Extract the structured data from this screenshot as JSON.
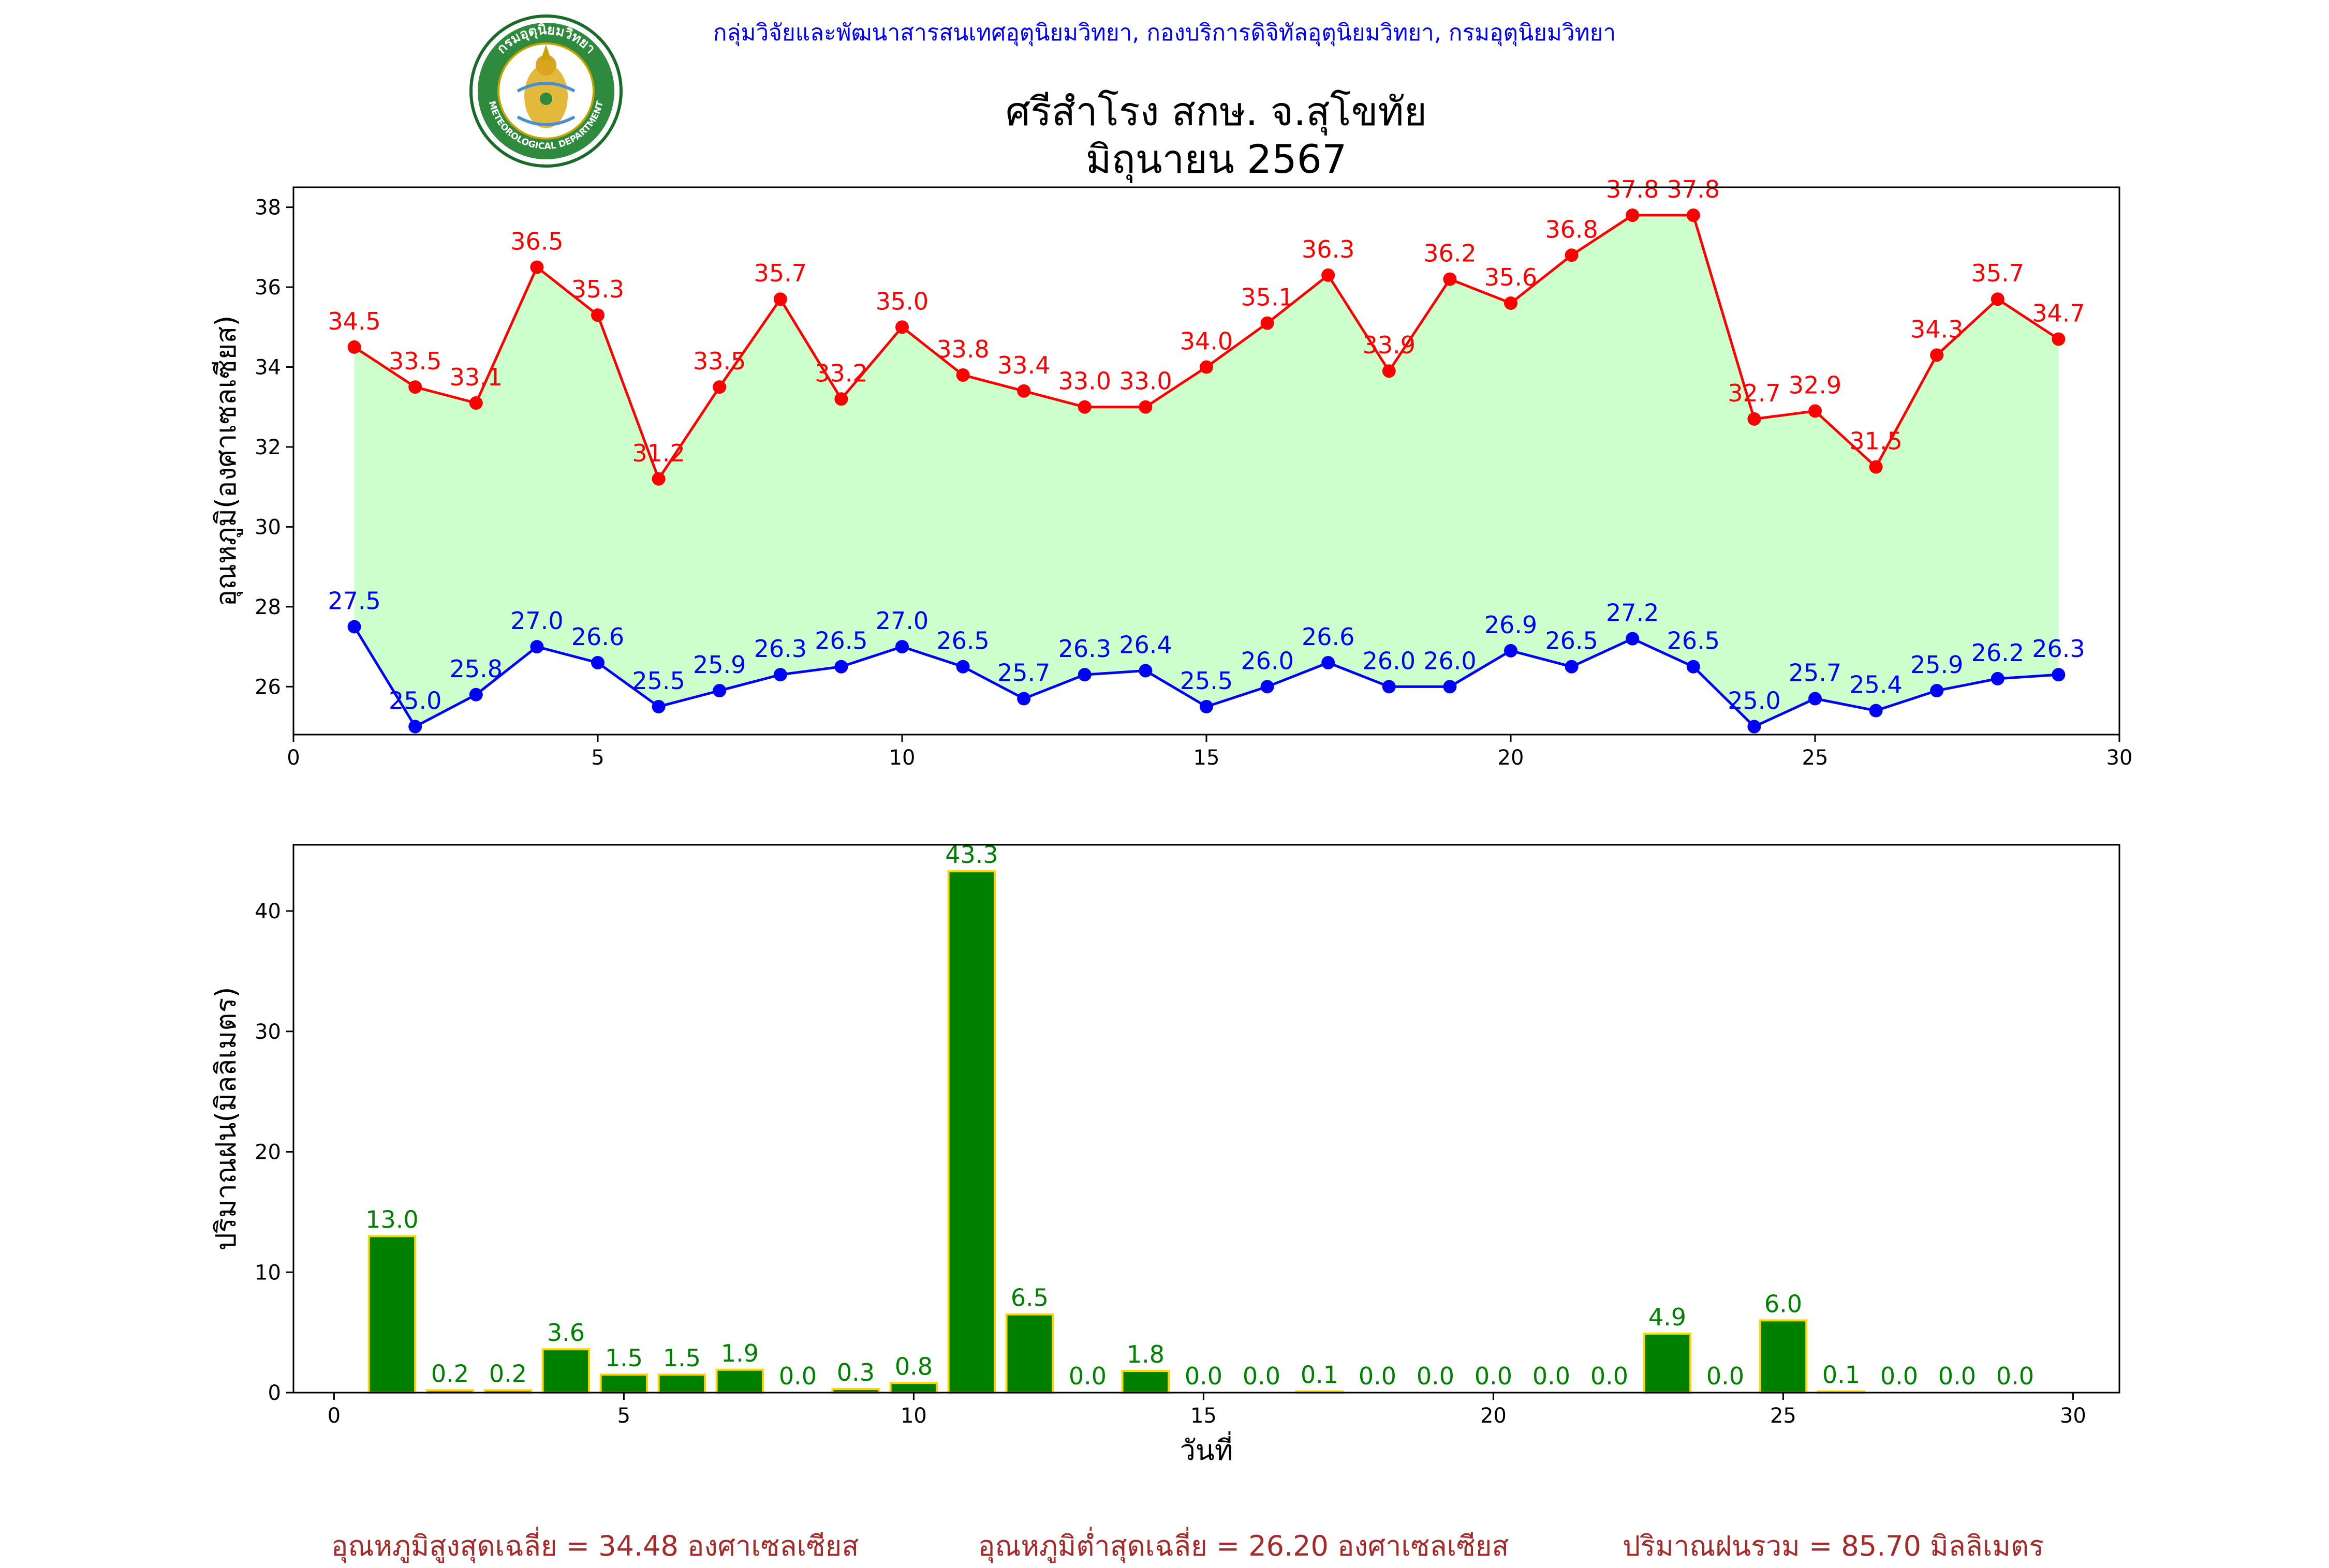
{
  "header": {
    "agency": "กลุ่มวิจัยและพัฒนาสารสนเทศอุตุนิยมวิทยา, กองบริการดิจิทัลอุตุนิยมวิทยา, กรมอุตุนิยมวิทยา",
    "title_line1": "ศรีสำโรง สกษ. จ.สุโขทัย",
    "title_line2": "มิถุนายน 2567",
    "logo": {
      "icon": "meteorological-department-seal-icon",
      "text_top": "กรมอุตุนิยมวิทยา",
      "text_bottom": "METEOROLOGICAL DEPARTMENT"
    }
  },
  "colors": {
    "max_temp": "#ff0000",
    "min_temp": "#0000ff",
    "range_fill": "#ccffcc",
    "rain_bar": "#008000",
    "rain_edge": "#ffd700",
    "rain_label": "#008000",
    "footer_text": "#a52a2a"
  },
  "chart_data": [
    {
      "type": "line",
      "ylabel": "อุณหภูมิ(องศาเซลเซียส)",
      "xlim": [
        0,
        30
      ],
      "ylim": [
        24.8,
        38.5
      ],
      "xticks": [
        0,
        5,
        10,
        15,
        20,
        25,
        30
      ],
      "yticks": [
        26,
        28,
        30,
        32,
        34,
        36,
        38
      ],
      "x": [
        1,
        2,
        3,
        4,
        5,
        6,
        7,
        8,
        9,
        10,
        11,
        12,
        13,
        14,
        15,
        16,
        17,
        18,
        19,
        20,
        21,
        22,
        23,
        24,
        25,
        26,
        27,
        28,
        29
      ],
      "fill_between": true,
      "series": [
        {
          "key": "max",
          "values": [
            34.5,
            33.5,
            33.1,
            36.5,
            35.3,
            31.2,
            33.5,
            35.7,
            33.2,
            35.0,
            33.8,
            33.4,
            33.0,
            33.0,
            34.0,
            35.1,
            36.3,
            33.9,
            36.2,
            35.6,
            36.8,
            37.8,
            37.8,
            32.7,
            32.9,
            31.5,
            34.3,
            35.7,
            34.7
          ]
        },
        {
          "key": "min",
          "values": [
            27.5,
            25.0,
            25.8,
            27.0,
            26.6,
            25.5,
            25.9,
            26.3,
            26.5,
            27.0,
            26.5,
            25.7,
            26.3,
            26.4,
            25.5,
            26.0,
            26.6,
            26.0,
            26.0,
            26.9,
            26.5,
            27.2,
            26.5,
            25.0,
            25.7,
            25.4,
            25.9,
            26.2,
            26.3
          ]
        }
      ]
    },
    {
      "type": "bar",
      "ylabel": "ปริมาณฝน(มิลลิเมตร)",
      "xlabel": "วันที่",
      "xlim": [
        -0.7,
        30.8
      ],
      "ylim": [
        0,
        45.5
      ],
      "xticks": [
        0,
        5,
        10,
        15,
        20,
        25,
        30
      ],
      "yticks": [
        0,
        10,
        20,
        30,
        40
      ],
      "x": [
        1,
        2,
        3,
        4,
        5,
        6,
        7,
        8,
        9,
        10,
        11,
        12,
        13,
        14,
        15,
        16,
        17,
        18,
        19,
        20,
        21,
        22,
        23,
        24,
        25,
        26,
        27,
        28,
        29
      ],
      "values": [
        13.0,
        0.2,
        0.2,
        3.6,
        1.5,
        1.5,
        1.9,
        0.0,
        0.3,
        0.8,
        43.3,
        6.5,
        0.0,
        1.8,
        0.0,
        0.0,
        0.1,
        0.0,
        0.0,
        0.0,
        0.0,
        0.0,
        4.9,
        0.0,
        6.0,
        0.1,
        0.0,
        0.0,
        0.0
      ]
    }
  ],
  "footer": {
    "avg_max": "อุณหภูมิสูงสุดเฉลี่ย = 34.48 องศาเซลเซียส",
    "avg_min": "อุณหภูมิต่ำสุดเฉลี่ย = 26.20 องศาเซลเซียส",
    "rain_total": "ปริมาณฝนรวม = 85.70 มิลลิเมตร"
  }
}
